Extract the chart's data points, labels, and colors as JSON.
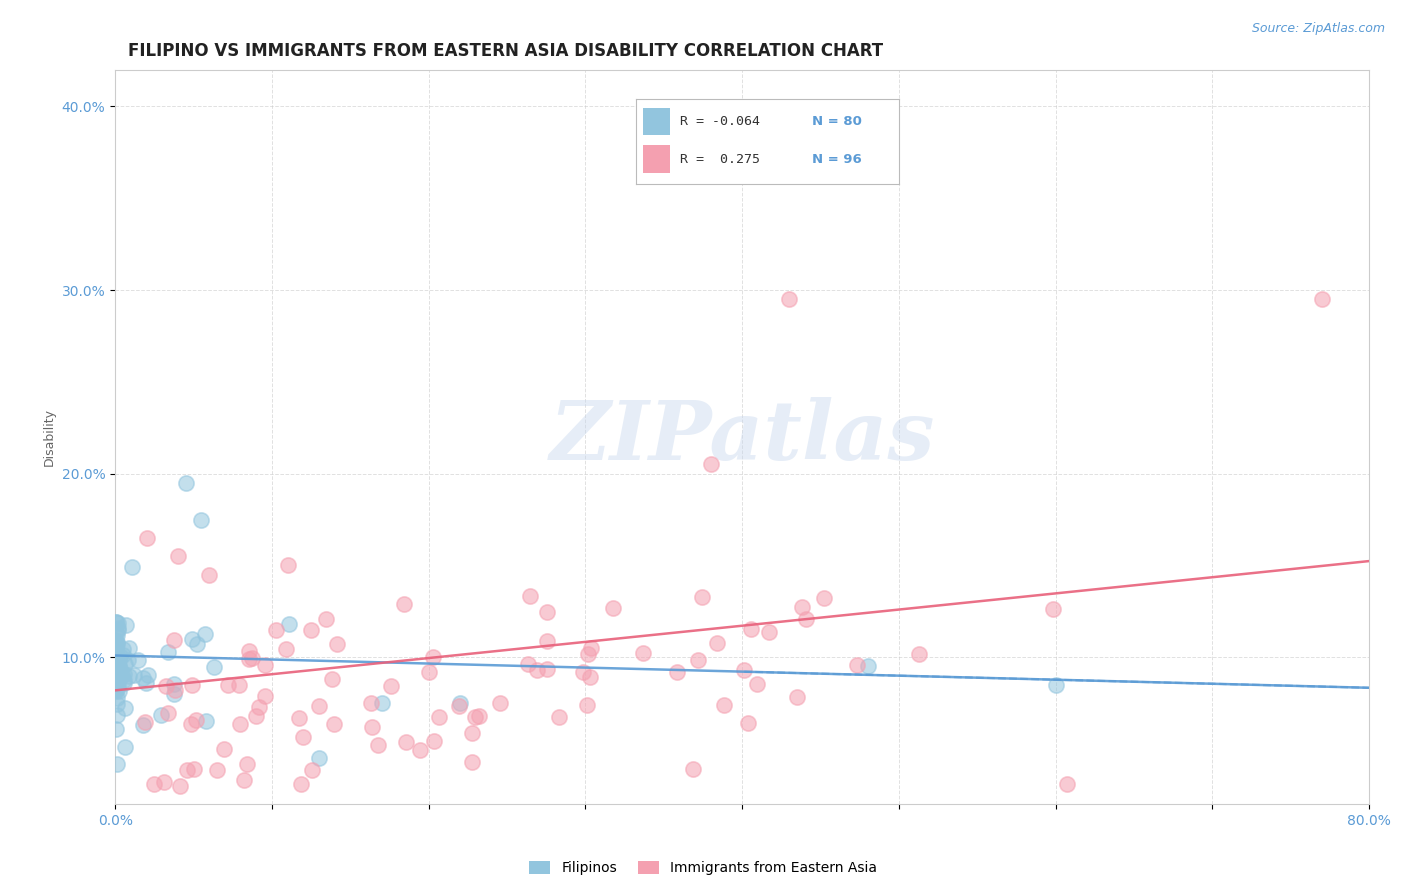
{
  "title": "FILIPINO VS IMMIGRANTS FROM EASTERN ASIA DISABILITY CORRELATION CHART",
  "source_text": "Source: ZipAtlas.com",
  "ylabel": "Disability",
  "xlim": [
    0.0,
    0.8
  ],
  "ylim": [
    0.02,
    0.42
  ],
  "xtick_pos": [
    0.0,
    0.1,
    0.2,
    0.3,
    0.4,
    0.5,
    0.6,
    0.7,
    0.8
  ],
  "xtick_labels": [
    "0.0%",
    "",
    "",
    "",
    "",
    "",
    "",
    "",
    "80.0%"
  ],
  "ytick_pos": [
    0.1,
    0.2,
    0.3,
    0.4
  ],
  "ytick_labels": [
    "10.0%",
    "20.0%",
    "30.0%",
    "40.0%"
  ],
  "color_filipino": "#92c5de",
  "color_eastern_asia": "#f4a0b0",
  "color_line_filipino": "#5b9bd5",
  "color_line_eastern_asia": "#e8607a",
  "background_color": "#ffffff",
  "watermark_text": "ZIPatlas",
  "n_filipino": 80,
  "n_eastern_asia": 96,
  "r_filipino": -0.064,
  "r_eastern_asia": 0.275,
  "title_fontsize": 12,
  "axis_label_fontsize": 9,
  "tick_fontsize": 10,
  "legend_color_r": "#333333",
  "legend_color_n": "#5b9bd5",
  "grid_color": "#cccccc",
  "dot_size": 120,
  "dot_alpha": 0.55,
  "dot_linewidth": 1.2
}
